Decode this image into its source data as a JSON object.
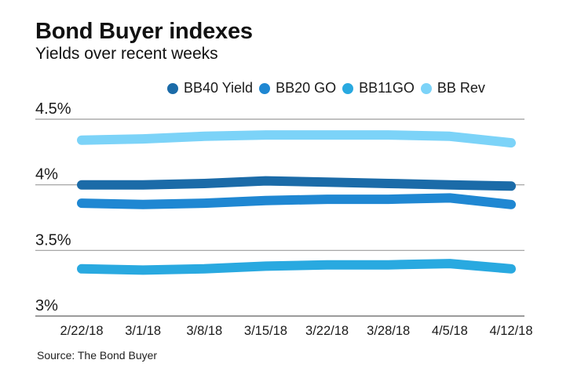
{
  "header": {
    "title": "Bond Buyer indexes",
    "subtitle": "Yields over recent weeks"
  },
  "source": {
    "label": "Source: The Bond Buyer"
  },
  "colors": {
    "background": "#ffffff",
    "gridline": "#9b9b9b",
    "axis_text": "#1a1a1a",
    "bb40_yield": "#1b6ba8",
    "bb20_go": "#1f87d2",
    "bb11go": "#29a9e0",
    "bb_rev": "#7cd3f8"
  },
  "chart_data": {
    "type": "line",
    "title": "Bond Buyer indexes",
    "subtitle": "Yields over recent weeks",
    "categories": [
      "2/22/18",
      "3/1/18",
      "3/8/18",
      "3/15/18",
      "3/22/18",
      "3/28/18",
      "4/5/18",
      "4/12/18"
    ],
    "series": [
      {
        "name": "BB40 Yield",
        "color": "#1b6ba8",
        "values": [
          4.0,
          4.0,
          4.01,
          4.03,
          4.02,
          4.01,
          4.0,
          3.99
        ]
      },
      {
        "name": "BB20 GO",
        "color": "#1f87d2",
        "values": [
          3.86,
          3.85,
          3.86,
          3.88,
          3.89,
          3.89,
          3.9,
          3.85
        ]
      },
      {
        "name": "BB11GO",
        "color": "#29a9e0",
        "values": [
          3.36,
          3.35,
          3.36,
          3.38,
          3.39,
          3.39,
          3.4,
          3.36
        ]
      },
      {
        "name": "BB Rev",
        "color": "#7cd3f8",
        "values": [
          4.34,
          4.35,
          4.37,
          4.38,
          4.38,
          4.38,
          4.37,
          4.32
        ]
      }
    ],
    "xlabel": "",
    "ylabel": "",
    "ylim": [
      3.0,
      4.5
    ],
    "y_ticks": [
      {
        "value": 4.5,
        "label": "4.5%"
      },
      {
        "value": 4.0,
        "label": "4%"
      },
      {
        "value": 3.5,
        "label": "3.5%"
      },
      {
        "value": 3.0,
        "label": "3%"
      }
    ],
    "grid": "horizontal",
    "legend_position": "top"
  }
}
